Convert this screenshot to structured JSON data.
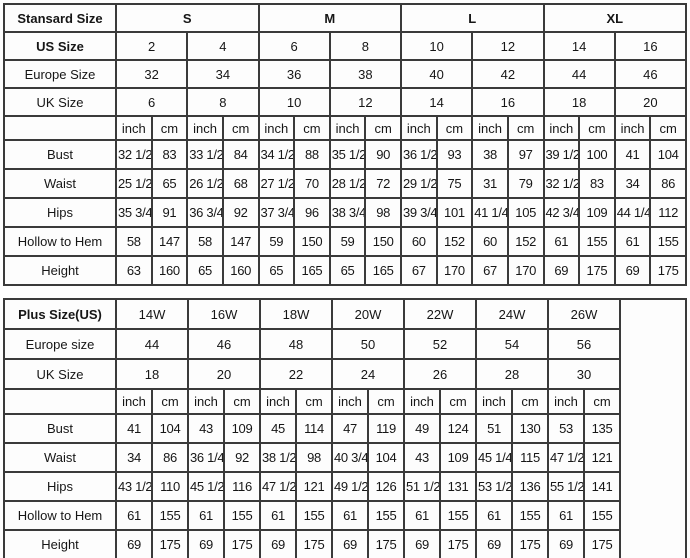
{
  "page_title": "Size Chart",
  "colors": {
    "border": "#3a3a3a",
    "text": "#161616",
    "background": "#fefefe"
  },
  "chart_data": [
    {
      "type": "table",
      "title": "Stansard Size",
      "size_groups": [
        "S",
        "M",
        "L",
        "XL"
      ],
      "size_groups_bold": true,
      "header_rows": [
        {
          "label": "US Size",
          "bold": true,
          "values": [
            "2",
            "4",
            "6",
            "8",
            "10",
            "12",
            "14",
            "16"
          ]
        },
        {
          "label": "Europe Size",
          "bold": false,
          "values": [
            "32",
            "34",
            "36",
            "38",
            "40",
            "42",
            "44",
            "46"
          ]
        },
        {
          "label": "UK Size",
          "bold": false,
          "values": [
            "6",
            "8",
            "10",
            "12",
            "14",
            "16",
            "18",
            "20"
          ]
        }
      ],
      "unit_labels": [
        "inch",
        "cm"
      ],
      "unit_pairs": 8,
      "measure_rows": [
        {
          "label": "Bust",
          "values": [
            "32 1/2",
            "83",
            "33 1/2",
            "84",
            "34 1/2",
            "88",
            "35 1/2",
            "90",
            "36 1/2",
            "93",
            "38",
            "97",
            "39 1/2",
            "100",
            "41",
            "104"
          ]
        },
        {
          "label": "Waist",
          "values": [
            "25 1/2",
            "65",
            "26 1/2",
            "68",
            "27 1/2",
            "70",
            "28 1/2",
            "72",
            "29 1/2",
            "75",
            "31",
            "79",
            "32 1/2",
            "83",
            "34",
            "86"
          ]
        },
        {
          "label": "Hips",
          "values": [
            "35 3/4",
            "91",
            "36 3/4",
            "92",
            "37 3/4",
            "96",
            "38 3/4",
            "98",
            "39 3/4",
            "101",
            "41 1/4",
            "105",
            "42 3/4",
            "109",
            "44 1/4",
            "112"
          ]
        },
        {
          "label": "Hollow to Hem",
          "values": [
            "58",
            "147",
            "58",
            "147",
            "59",
            "150",
            "59",
            "150",
            "60",
            "152",
            "60",
            "152",
            "61",
            "155",
            "61",
            "155"
          ]
        },
        {
          "label": "Height",
          "values": [
            "63",
            "160",
            "65",
            "160",
            "65",
            "165",
            "65",
            "165",
            "67",
            "170",
            "67",
            "170",
            "69",
            "175",
            "69",
            "175"
          ]
        }
      ],
      "trailing_blank_column": false
    },
    {
      "type": "table",
      "title": "Plus Size(US)",
      "size_groups": [
        "14W",
        "16W",
        "18W",
        "20W",
        "22W",
        "24W",
        "26W"
      ],
      "size_groups_bold": false,
      "header_rows": [
        {
          "label": "Europe size",
          "bold": false,
          "values": [
            "44",
            "46",
            "48",
            "50",
            "52",
            "54",
            "56"
          ]
        },
        {
          "label": "UK Size",
          "bold": false,
          "values": [
            "18",
            "20",
            "22",
            "24",
            "26",
            "28",
            "30"
          ]
        }
      ],
      "unit_labels": [
        "inch",
        "cm"
      ],
      "unit_pairs": 7,
      "measure_rows": [
        {
          "label": "Bust",
          "values": [
            "41",
            "104",
            "43",
            "109",
            "45",
            "114",
            "47",
            "119",
            "49",
            "124",
            "51",
            "130",
            "53",
            "135"
          ]
        },
        {
          "label": "Waist",
          "values": [
            "34",
            "86",
            "36 1/4",
            "92",
            "38 1/2",
            "98",
            "40 3/4",
            "104",
            "43",
            "109",
            "45 1/4",
            "115",
            "47 1/2",
            "121"
          ]
        },
        {
          "label": "Hips",
          "values": [
            "43 1/2",
            "110",
            "45 1/2",
            "116",
            "47 1/2",
            "121",
            "49 1/2",
            "126",
            "51 1/2",
            "131",
            "53 1/2",
            "136",
            "55 1/2",
            "141"
          ]
        },
        {
          "label": "Hollow to Hem",
          "values": [
            "61",
            "155",
            "61",
            "155",
            "61",
            "155",
            "61",
            "155",
            "61",
            "155",
            "61",
            "155",
            "61",
            "155"
          ]
        },
        {
          "label": "Height",
          "values": [
            "69",
            "175",
            "69",
            "175",
            "69",
            "175",
            "69",
            "175",
            "69",
            "175",
            "69",
            "175",
            "69",
            "175"
          ]
        }
      ],
      "trailing_blank_column": true
    }
  ]
}
